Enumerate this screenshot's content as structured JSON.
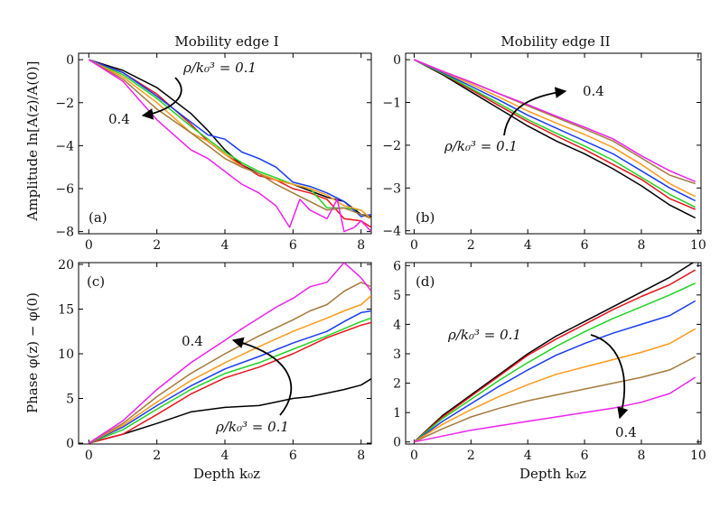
{
  "figure": {
    "col_titles": [
      "Mobility edge I",
      "Mobility edge II"
    ],
    "ylabel_top": "Amplitude ln[A(z)/A(0)]",
    "ylabel_bottom": "Phase φ(z) − φ(0)",
    "xlabel": "Depth k₀z"
  },
  "colors": {
    "black": "#000000",
    "red": "#e8141c",
    "green": "#22d322",
    "blue": "#1a3cf0",
    "orange": "#ff9a1a",
    "brown": "#a47a3c",
    "magenta": "#ee22ee"
  },
  "chart_data": [
    {
      "id": "a",
      "type": "line",
      "panel_label": "(a)",
      "xlim": [
        -0.3,
        8.3
      ],
      "ylim": [
        -8.1,
        0.3
      ],
      "xticks": [
        0,
        2,
        4,
        6,
        8
      ],
      "yticks": [
        0,
        -2,
        -4,
        -6,
        -8
      ],
      "annotation": {
        "top": "ρ/k₀³ = 0.1",
        "bottom": "0.4"
      },
      "series": [
        {
          "name": "ρ/k₀³=0.1",
          "color": "black",
          "x": [
            0,
            1,
            2,
            3,
            3.5,
            4,
            4.5,
            5,
            5.5,
            6,
            6.5,
            7,
            7.5,
            8,
            8.3
          ],
          "y": [
            0,
            -0.5,
            -1.3,
            -2.5,
            -3.3,
            -4.2,
            -4.9,
            -5.3,
            -5.6,
            -5.8,
            -6.1,
            -6.4,
            -6.6,
            -7.2,
            -7.3
          ]
        },
        {
          "name": "red",
          "color": "red",
          "x": [
            0,
            1,
            2,
            3,
            3.5,
            4,
            4.5,
            5,
            5.5,
            6,
            6.5,
            7,
            7.5,
            8,
            8.3
          ],
          "y": [
            0,
            -0.6,
            -1.6,
            -3.0,
            -3.8,
            -4.4,
            -4.9,
            -5.4,
            -5.6,
            -6.0,
            -6.2,
            -6.5,
            -7.4,
            -7.5,
            -7.8
          ]
        },
        {
          "name": "green",
          "color": "green",
          "x": [
            0,
            1,
            2,
            3,
            3.5,
            4,
            4.5,
            5,
            5.5,
            6,
            6.5,
            7,
            7.5,
            8,
            8.3
          ],
          "y": [
            0,
            -0.7,
            -1.8,
            -3.1,
            -3.7,
            -4.3,
            -4.8,
            -5.2,
            -5.5,
            -5.8,
            -6.0,
            -6.9,
            -6.9,
            -7.0,
            -7.4
          ]
        },
        {
          "name": "blue",
          "color": "blue",
          "x": [
            0,
            1,
            2,
            3,
            3.5,
            4,
            4.5,
            5,
            5.5,
            6,
            6.5,
            7,
            7.5,
            8,
            8.3
          ],
          "y": [
            0,
            -0.6,
            -1.7,
            -2.9,
            -3.5,
            -3.7,
            -4.3,
            -4.6,
            -5.0,
            -5.7,
            -5.9,
            -6.2,
            -6.6,
            -7.3,
            -7.2
          ]
        },
        {
          "name": "orange",
          "color": "orange",
          "x": [
            0,
            1,
            2,
            3,
            3.5,
            4,
            4.5,
            5,
            5.5,
            6,
            6.5,
            7,
            7.5,
            8,
            8.3
          ],
          "y": [
            0,
            -0.8,
            -2.0,
            -3.4,
            -3.8,
            -4.4,
            -5.0,
            -5.3,
            -5.6,
            -5.8,
            -6.0,
            -6.3,
            -6.8,
            -7.0,
            -7.4
          ]
        },
        {
          "name": "brown",
          "color": "brown",
          "x": [
            0,
            1,
            2,
            3,
            3.5,
            4,
            4.5,
            5,
            5.5,
            6,
            6.5,
            7,
            7.5,
            8,
            8.3
          ],
          "y": [
            0,
            -0.9,
            -2.3,
            -3.4,
            -4.0,
            -4.6,
            -5.0,
            -5.3,
            -5.8,
            -6.2,
            -6.6,
            -7.0,
            -6.9,
            -7.2,
            -7.4
          ]
        },
        {
          "name": "ρ/k₀³=0.4",
          "color": "magenta",
          "x": [
            0,
            1,
            2,
            3,
            3.5,
            4,
            4.5,
            5,
            5.5,
            5.9,
            6.2,
            6.5,
            7,
            7.3,
            7.5,
            7.8,
            8,
            8.3
          ],
          "y": [
            0,
            -1.0,
            -2.8,
            -4.2,
            -4.6,
            -5.2,
            -5.8,
            -6.2,
            -6.8,
            -7.8,
            -6.5,
            -7.0,
            -7.4,
            -6.5,
            -8.0,
            -7.8,
            -7.5,
            -8.0
          ]
        }
      ]
    },
    {
      "id": "b",
      "type": "line",
      "panel_label": "(b)",
      "xlim": [
        -0.3,
        10.1
      ],
      "ylim": [
        -4.07,
        0.15
      ],
      "xticks": [
        0,
        2,
        4,
        6,
        8,
        10
      ],
      "yticks": [
        0,
        -1,
        -2,
        -3,
        -4
      ],
      "annotation": {
        "top": "0.4",
        "bottom": "ρ/k₀³ = 0.1"
      },
      "series": [
        {
          "name": "ρ/k₀³=0.1",
          "color": "black",
          "x": [
            0,
            1,
            2,
            3,
            4,
            5,
            6,
            7,
            8,
            9,
            9.9
          ],
          "y": [
            0,
            -0.35,
            -0.75,
            -1.15,
            -1.55,
            -1.9,
            -2.2,
            -2.55,
            -2.95,
            -3.4,
            -3.7
          ]
        },
        {
          "name": "red",
          "color": "red",
          "x": [
            0,
            1,
            2,
            3,
            4,
            5,
            6,
            7,
            8,
            9,
            9.9
          ],
          "y": [
            0,
            -0.33,
            -0.7,
            -1.08,
            -1.45,
            -1.78,
            -2.1,
            -2.45,
            -2.8,
            -3.25,
            -3.5
          ]
        },
        {
          "name": "green",
          "color": "green",
          "x": [
            0,
            1,
            2,
            3,
            4,
            5,
            6,
            7,
            8,
            9,
            9.9
          ],
          "y": [
            0,
            -0.32,
            -0.67,
            -1.03,
            -1.4,
            -1.72,
            -2.02,
            -2.35,
            -2.75,
            -3.15,
            -3.45
          ]
        },
        {
          "name": "blue",
          "color": "blue",
          "x": [
            0,
            1,
            2,
            3,
            4,
            5,
            6,
            7,
            8,
            9,
            9.9
          ],
          "y": [
            0,
            -0.3,
            -0.62,
            -0.95,
            -1.3,
            -1.6,
            -1.9,
            -2.2,
            -2.6,
            -3.0,
            -3.3
          ]
        },
        {
          "name": "orange",
          "color": "orange",
          "x": [
            0,
            1,
            2,
            3,
            4,
            5,
            6,
            7,
            8,
            9,
            9.9
          ],
          "y": [
            0,
            -0.28,
            -0.57,
            -0.88,
            -1.2,
            -1.48,
            -1.75,
            -2.05,
            -2.45,
            -2.9,
            -3.2
          ]
        },
        {
          "name": "brown",
          "color": "brown",
          "x": [
            0,
            1,
            2,
            3,
            4,
            5,
            6,
            7,
            8,
            9,
            9.9
          ],
          "y": [
            0,
            -0.27,
            -0.53,
            -0.8,
            -1.08,
            -1.35,
            -1.62,
            -1.9,
            -2.3,
            -2.7,
            -2.9
          ]
        },
        {
          "name": "ρ/k₀³=0.4",
          "color": "magenta",
          "x": [
            0,
            1,
            2,
            3,
            4,
            5,
            6,
            7,
            8,
            9,
            9.9
          ],
          "y": [
            0,
            -0.27,
            -0.52,
            -0.8,
            -1.05,
            -1.32,
            -1.58,
            -1.85,
            -2.25,
            -2.6,
            -2.85
          ]
        }
      ]
    },
    {
      "id": "c",
      "type": "line",
      "panel_label": "(c)",
      "xlim": [
        -0.3,
        8.3
      ],
      "ylim": [
        -0.1,
        20.2
      ],
      "xticks": [
        0,
        2,
        4,
        6,
        8
      ],
      "yticks": [
        0,
        5,
        10,
        15,
        20
      ],
      "annotation": {
        "top": "0.4",
        "bottom": "ρ/k₀³ = 0.1"
      },
      "series": [
        {
          "name": "ρ/k₀³=0.1",
          "color": "black",
          "x": [
            0,
            1,
            2,
            3,
            4,
            5,
            5.5,
            6,
            6.5,
            7,
            7.5,
            8,
            8.3
          ],
          "y": [
            0,
            1.0,
            2.2,
            3.5,
            4.0,
            4.2,
            4.6,
            5.0,
            5.2,
            5.6,
            6.0,
            6.5,
            7.2
          ]
        },
        {
          "name": "red",
          "color": "red",
          "x": [
            0,
            1,
            2,
            3,
            4,
            5,
            6,
            7,
            8,
            8.3
          ],
          "y": [
            0,
            1.0,
            3.2,
            5.5,
            7.3,
            8.5,
            10.0,
            11.8,
            13.2,
            13.5
          ]
        },
        {
          "name": "green",
          "color": "green",
          "x": [
            0,
            1,
            2,
            3,
            4,
            5,
            6,
            7,
            8,
            8.3
          ],
          "y": [
            0,
            1.5,
            3.8,
            6.0,
            7.8,
            9.0,
            10.5,
            12.0,
            13.6,
            14.0
          ]
        },
        {
          "name": "blue",
          "color": "blue",
          "x": [
            0,
            1,
            2,
            3,
            4,
            5,
            6,
            7,
            7.5,
            8,
            8.3
          ],
          "y": [
            0,
            1.8,
            4.2,
            6.4,
            8.3,
            9.7,
            11.2,
            12.5,
            13.6,
            14.6,
            14.8
          ]
        },
        {
          "name": "orange",
          "color": "orange",
          "x": [
            0,
            1,
            2,
            3,
            4,
            5,
            6,
            7,
            7.5,
            8,
            8.3
          ],
          "y": [
            0,
            2.0,
            4.6,
            7.0,
            9.0,
            10.8,
            12.5,
            14.0,
            14.8,
            15.5,
            16.5
          ]
        },
        {
          "name": "brown",
          "color": "brown",
          "x": [
            0,
            1,
            2,
            3,
            4,
            5,
            6,
            6.5,
            7,
            7.5,
            8,
            8.3
          ],
          "y": [
            0,
            2.2,
            5.2,
            7.8,
            10.0,
            12.0,
            13.8,
            14.8,
            15.5,
            17.0,
            18.0,
            17.5
          ]
        },
        {
          "name": "ρ/k₀³=0.4",
          "color": "magenta",
          "x": [
            0,
            1,
            2,
            3,
            4,
            4.5,
            5,
            5.5,
            6,
            6.5,
            7,
            7.5,
            8,
            8.3
          ],
          "y": [
            0,
            2.5,
            6.0,
            9.0,
            11.5,
            12.8,
            14.0,
            15.2,
            16.2,
            17.5,
            18.0,
            20.2,
            18.5,
            17.0
          ]
        }
      ]
    },
    {
      "id": "d",
      "type": "line",
      "panel_label": "(d)",
      "xlim": [
        -0.3,
        10.1
      ],
      "ylim": [
        -0.07,
        6.1
      ],
      "xticks": [
        0,
        2,
        4,
        6,
        8,
        10
      ],
      "yticks": [
        0,
        1,
        2,
        3,
        4,
        5,
        6
      ],
      "annotation": {
        "top": "ρ/k₀³ = 0.1",
        "bottom": "0.4"
      },
      "series": [
        {
          "name": "ρ/k₀³=0.1",
          "color": "black",
          "x": [
            0,
            1,
            2,
            3,
            4,
            5,
            6,
            7,
            8,
            9,
            9.9
          ],
          "y": [
            0,
            0.9,
            1.6,
            2.3,
            3.0,
            3.6,
            4.1,
            4.6,
            5.1,
            5.6,
            6.15
          ]
        },
        {
          "name": "red",
          "color": "red",
          "x": [
            0,
            1,
            2,
            3,
            4,
            5,
            6,
            7,
            8,
            9,
            9.9
          ],
          "y": [
            0,
            0.85,
            1.55,
            2.25,
            2.95,
            3.5,
            4.0,
            4.5,
            4.95,
            5.35,
            5.85
          ]
        },
        {
          "name": "green",
          "color": "green",
          "x": [
            0,
            1,
            2,
            3,
            4,
            5,
            6,
            7,
            8,
            9,
            9.9
          ],
          "y": [
            0,
            0.8,
            1.45,
            2.1,
            2.7,
            3.25,
            3.75,
            4.2,
            4.6,
            5.0,
            5.4
          ]
        },
        {
          "name": "blue",
          "color": "blue",
          "x": [
            0,
            1,
            2,
            3,
            4,
            5,
            6,
            7,
            8,
            9,
            9.9
          ],
          "y": [
            0,
            0.7,
            1.3,
            1.9,
            2.45,
            2.95,
            3.35,
            3.7,
            4.0,
            4.3,
            4.8
          ]
        },
        {
          "name": "orange",
          "color": "orange",
          "x": [
            0,
            1,
            2,
            3,
            4,
            5,
            6,
            7,
            8,
            9,
            9.9
          ],
          "y": [
            0,
            0.6,
            1.1,
            1.55,
            1.95,
            2.3,
            2.55,
            2.8,
            3.05,
            3.35,
            3.85
          ]
        },
        {
          "name": "brown",
          "color": "brown",
          "x": [
            0,
            1,
            2,
            3,
            4,
            5,
            6,
            7,
            8,
            9,
            9.9
          ],
          "y": [
            0,
            0.45,
            0.85,
            1.15,
            1.4,
            1.6,
            1.8,
            2.0,
            2.2,
            2.45,
            2.9
          ]
        },
        {
          "name": "ρ/k₀³=0.4",
          "color": "magenta",
          "x": [
            0,
            1,
            2,
            3,
            4,
            5,
            6,
            7,
            8,
            9,
            9.9
          ],
          "y": [
            0,
            0.2,
            0.4,
            0.55,
            0.7,
            0.85,
            1.0,
            1.15,
            1.35,
            1.65,
            2.2
          ]
        }
      ]
    }
  ]
}
